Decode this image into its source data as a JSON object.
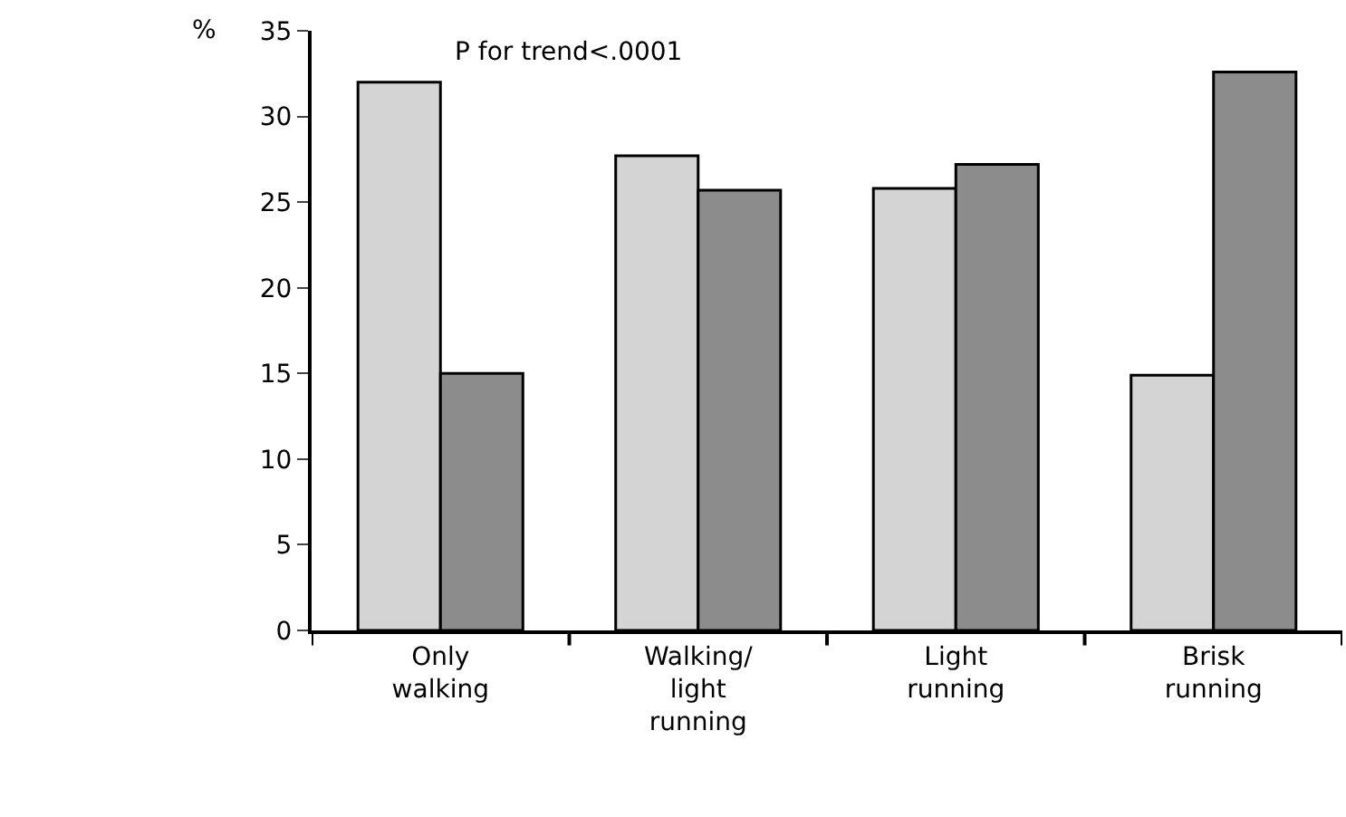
{
  "chart_data": {
    "type": "bar",
    "categories": [
      "Only\nwalking",
      "Walking/\nlight\nrunning",
      "Light\nrunning",
      "Brisk\nrunning"
    ],
    "series": [
      {
        "color": "#d4d4d4",
        "values": [
          32,
          27.7,
          25.8,
          14.9
        ]
      },
      {
        "color": "#8c8c8c",
        "values": [
          15,
          25.7,
          27.2,
          32.6
        ]
      }
    ],
    "ylabel": "%",
    "annotations": [
      "P for trend<.0001"
    ],
    "ylim": [
      0,
      35
    ],
    "yticks": [
      0,
      5,
      10,
      15,
      20,
      25,
      30,
      35
    ]
  }
}
